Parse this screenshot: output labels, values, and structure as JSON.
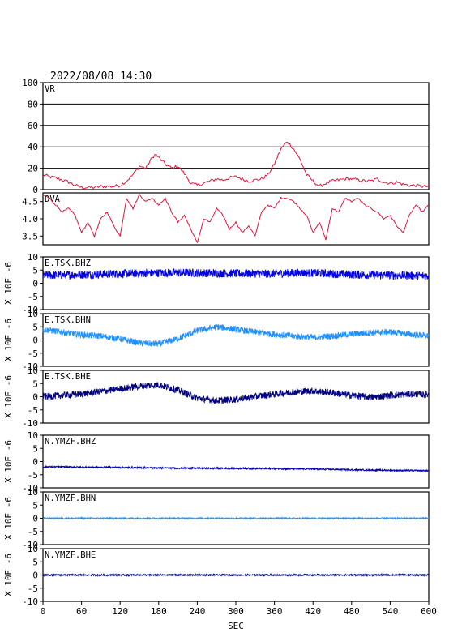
{
  "header": {
    "timestamp": "2022/08/08  14:30"
  },
  "xaxis": {
    "label": "SEC",
    "range": [
      0,
      600
    ],
    "ticks": [
      "0",
      "60",
      "120",
      "180",
      "240",
      "300",
      "360",
      "420",
      "480",
      "540",
      "600"
    ]
  },
  "colors": {
    "vr": "#dc143c",
    "bhz": "#0000e0",
    "bhn": "#1e90ff",
    "bhe": "#000080",
    "ymzf_bhz": "#0000b0",
    "frame": "#000000"
  },
  "chart_data": [
    {
      "type": "line",
      "label": "VR",
      "ylim": [
        0,
        100
      ],
      "yticks": [
        "0",
        "20",
        "40",
        "60",
        "80",
        "100"
      ],
      "grid": "horizontal",
      "series": [
        {
          "x": [
            0,
            10,
            20,
            30,
            40,
            50,
            60,
            70,
            80,
            90,
            100,
            110,
            120,
            130,
            140,
            150,
            160,
            170,
            175,
            180,
            190,
            200,
            210,
            220,
            230,
            240,
            250,
            260,
            270,
            280,
            290,
            300,
            310,
            320,
            330,
            340,
            350,
            360,
            370,
            380,
            390,
            400,
            410,
            420,
            430,
            440,
            450,
            460,
            470,
            480,
            490,
            500,
            510,
            520,
            530,
            540,
            550,
            560,
            570,
            580,
            590,
            600
          ],
          "values": [
            14,
            12,
            11,
            9,
            7,
            4,
            2,
            2,
            2,
            3,
            3,
            3,
            4,
            8,
            14,
            22,
            20,
            30,
            33,
            30,
            24,
            20,
            22,
            15,
            6,
            4,
            6,
            8,
            10,
            9,
            11,
            12,
            10,
            8,
            9,
            10,
            14,
            24,
            38,
            45,
            38,
            28,
            14,
            8,
            3,
            6,
            8,
            9,
            10,
            10,
            9,
            8,
            8,
            10,
            7,
            6,
            7,
            5,
            4,
            4,
            3,
            3
          ]
        }
      ]
    },
    {
      "type": "line",
      "label": "DVA",
      "ylim": [
        3.25,
        4.75
      ],
      "yticks": [
        "3.5",
        "4.0",
        "4.5"
      ],
      "series": [
        {
          "x": [
            0,
            10,
            20,
            30,
            40,
            50,
            60,
            70,
            80,
            90,
            100,
            110,
            120,
            130,
            140,
            150,
            160,
            170,
            180,
            190,
            200,
            210,
            220,
            230,
            240,
            250,
            260,
            270,
            280,
            290,
            300,
            310,
            320,
            330,
            340,
            350,
            360,
            370,
            380,
            390,
            400,
            410,
            420,
            430,
            440,
            450,
            460,
            470,
            480,
            490,
            500,
            510,
            520,
            530,
            540,
            550,
            560,
            570,
            580,
            590,
            600
          ],
          "values": [
            4.7,
            4.6,
            4.4,
            4.2,
            4.3,
            4.1,
            3.6,
            3.9,
            3.5,
            4.0,
            4.2,
            3.8,
            3.5,
            4.6,
            4.3,
            4.7,
            4.5,
            4.6,
            4.4,
            4.6,
            4.2,
            3.9,
            4.1,
            3.7,
            3.3,
            4.0,
            3.9,
            4.3,
            4.1,
            3.7,
            3.9,
            3.6,
            3.8,
            3.5,
            4.2,
            4.4,
            4.3,
            4.6,
            4.6,
            4.5,
            4.3,
            4.1,
            3.6,
            3.9,
            3.4,
            4.3,
            4.2,
            4.6,
            4.5,
            4.6,
            4.4,
            4.3,
            4.2,
            4.0,
            4.1,
            3.8,
            3.6,
            4.1,
            4.4,
            4.2,
            4.4
          ]
        }
      ]
    },
    {
      "type": "line",
      "label": "E.TSK.BHZ",
      "ylabel": "X 10E -6",
      "ylim": [
        -10,
        10
      ],
      "yticks": [
        "-10",
        "-5",
        "0",
        "5",
        "10"
      ],
      "series": [
        {
          "x": [
            0,
            50,
            100,
            150,
            200,
            250,
            300,
            350,
            400,
            450,
            500,
            550,
            600
          ],
          "values": [
            3.0,
            3.2,
            3.5,
            3.8,
            4.0,
            3.9,
            3.7,
            3.6,
            4.0,
            3.6,
            3.2,
            3.0,
            2.8
          ],
          "amplitude": 1.6
        }
      ]
    },
    {
      "type": "line",
      "label": "E.TSK.BHN",
      "ylabel": "X 10E -6",
      "ylim": [
        -10,
        10
      ],
      "yticks": [
        "-10",
        "-5",
        "0",
        "5",
        "10"
      ],
      "series": [
        {
          "x": [
            0,
            30,
            60,
            90,
            120,
            150,
            180,
            210,
            240,
            270,
            300,
            330,
            360,
            390,
            420,
            450,
            480,
            510,
            540,
            570,
            600
          ],
          "values": [
            4.0,
            3.0,
            2.0,
            1.5,
            0.5,
            -1.2,
            -1.5,
            0.5,
            3.5,
            5.0,
            4.0,
            3.0,
            2.2,
            1.5,
            1.0,
            1.5,
            2.2,
            2.8,
            3.0,
            2.2,
            1.5
          ],
          "amplitude": 1.2
        }
      ]
    },
    {
      "type": "line",
      "label": "E.TSK.BHE",
      "ylabel": "X 10E -6",
      "ylim": [
        -10,
        10
      ],
      "yticks": [
        "-10",
        "-5",
        "0",
        "5",
        "10"
      ],
      "series": [
        {
          "x": [
            0,
            30,
            60,
            90,
            120,
            150,
            180,
            210,
            240,
            270,
            300,
            330,
            360,
            390,
            420,
            450,
            480,
            510,
            540,
            570,
            600
          ],
          "values": [
            0.0,
            0.5,
            1.0,
            2.0,
            3.0,
            4.0,
            4.5,
            2.5,
            -0.5,
            -1.5,
            -1.0,
            0.0,
            1.0,
            1.8,
            2.2,
            1.5,
            0.5,
            -0.2,
            0.5,
            1.0,
            0.8
          ],
          "amplitude": 1.3
        }
      ]
    },
    {
      "type": "line",
      "label": "N.YMZF.BHZ",
      "ylabel": "X 10E -6",
      "ylim": [
        -10,
        10
      ],
      "yticks": [
        "-10",
        "-5",
        "0",
        "5",
        "10"
      ],
      "series": [
        {
          "x": [
            0,
            100,
            200,
            300,
            400,
            500,
            600
          ],
          "values": [
            -2.0,
            -2.2,
            -2.5,
            -2.6,
            -2.8,
            -3.2,
            -3.5
          ],
          "amplitude": 0.3
        }
      ]
    },
    {
      "type": "line",
      "label": "N.YMZF.BHN",
      "ylabel": "X 10E -6",
      "ylim": [
        -10,
        10
      ],
      "yticks": [
        "-10",
        "-5",
        "0",
        "5",
        "10"
      ],
      "series": [
        {
          "x": [
            0,
            300,
            600
          ],
          "values": [
            0.0,
            0.0,
            0.0
          ],
          "amplitude": 0.25
        }
      ]
    },
    {
      "type": "line",
      "label": "N.YMZF.BHE",
      "ylabel": "X 10E -6",
      "ylim": [
        -10,
        10
      ],
      "yticks": [
        "-10",
        "-5",
        "0",
        "5",
        "10"
      ],
      "series": [
        {
          "x": [
            0,
            300,
            600
          ],
          "values": [
            0.0,
            0.0,
            0.0
          ],
          "amplitude": 0.3
        }
      ]
    }
  ]
}
